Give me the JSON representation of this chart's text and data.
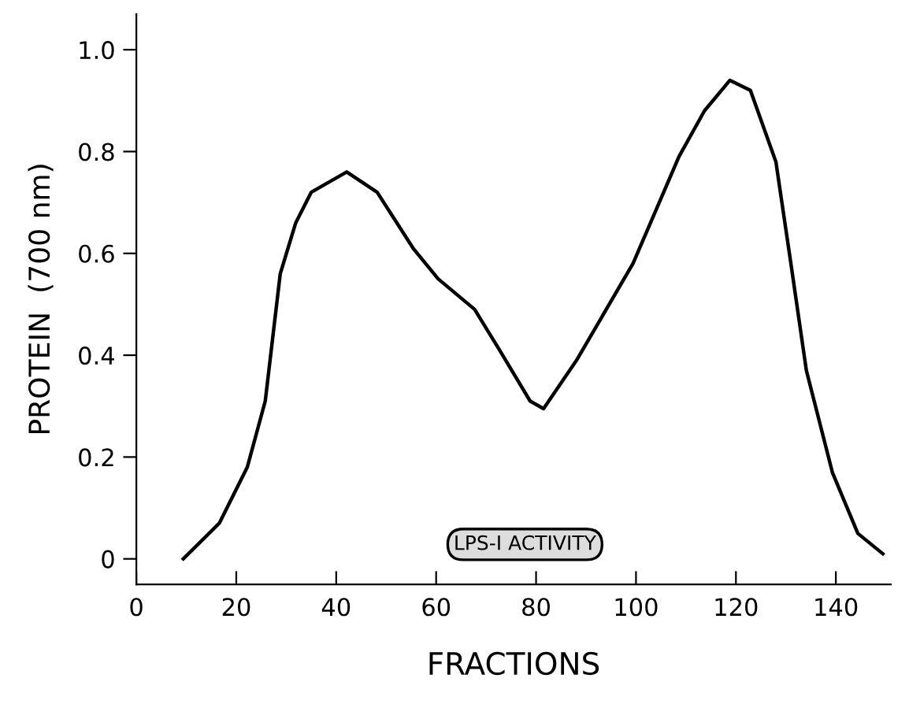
{
  "chart_data": {
    "type": "line",
    "xlabel": "FRACTIONS",
    "ylabel": "PROTEIN  (700 nm)",
    "x": [
      9.4,
      16.6,
      22.2,
      25.8,
      28.8,
      31.9,
      35.0,
      42.1,
      48.2,
      55.4,
      60.4,
      67.7,
      72.7,
      78.8,
      81.5,
      88.1,
      99.4,
      108.6,
      113.7,
      118.8,
      122.9,
      128.0,
      131.0,
      134.1,
      139.3,
      144.4,
      149.4
    ],
    "series": [
      {
        "color": "#000000",
        "values": [
          0.0,
          0.07,
          0.18,
          0.31,
          0.56,
          0.66,
          0.72,
          0.76,
          0.72,
          0.61,
          0.55,
          0.49,
          0.41,
          0.31,
          0.295,
          0.39,
          0.58,
          0.79,
          0.88,
          0.94,
          0.92,
          0.78,
          0.58,
          0.37,
          0.17,
          0.05,
          0.01
        ]
      }
    ],
    "xlim": [
      0,
      151
    ],
    "ylim": [
      -0.05,
      1.07
    ],
    "xticks": [
      0,
      20,
      40,
      60,
      80,
      100,
      120,
      140
    ],
    "yticks": [
      0,
      0.2,
      0.4,
      0.6,
      0.8,
      {
        "value": 1,
        "label": "1.0"
      }
    ],
    "annotations": [
      "LPS-I ACTIVITY"
    ],
    "grid": false,
    "marker": "none",
    "line_style": "solid"
  }
}
